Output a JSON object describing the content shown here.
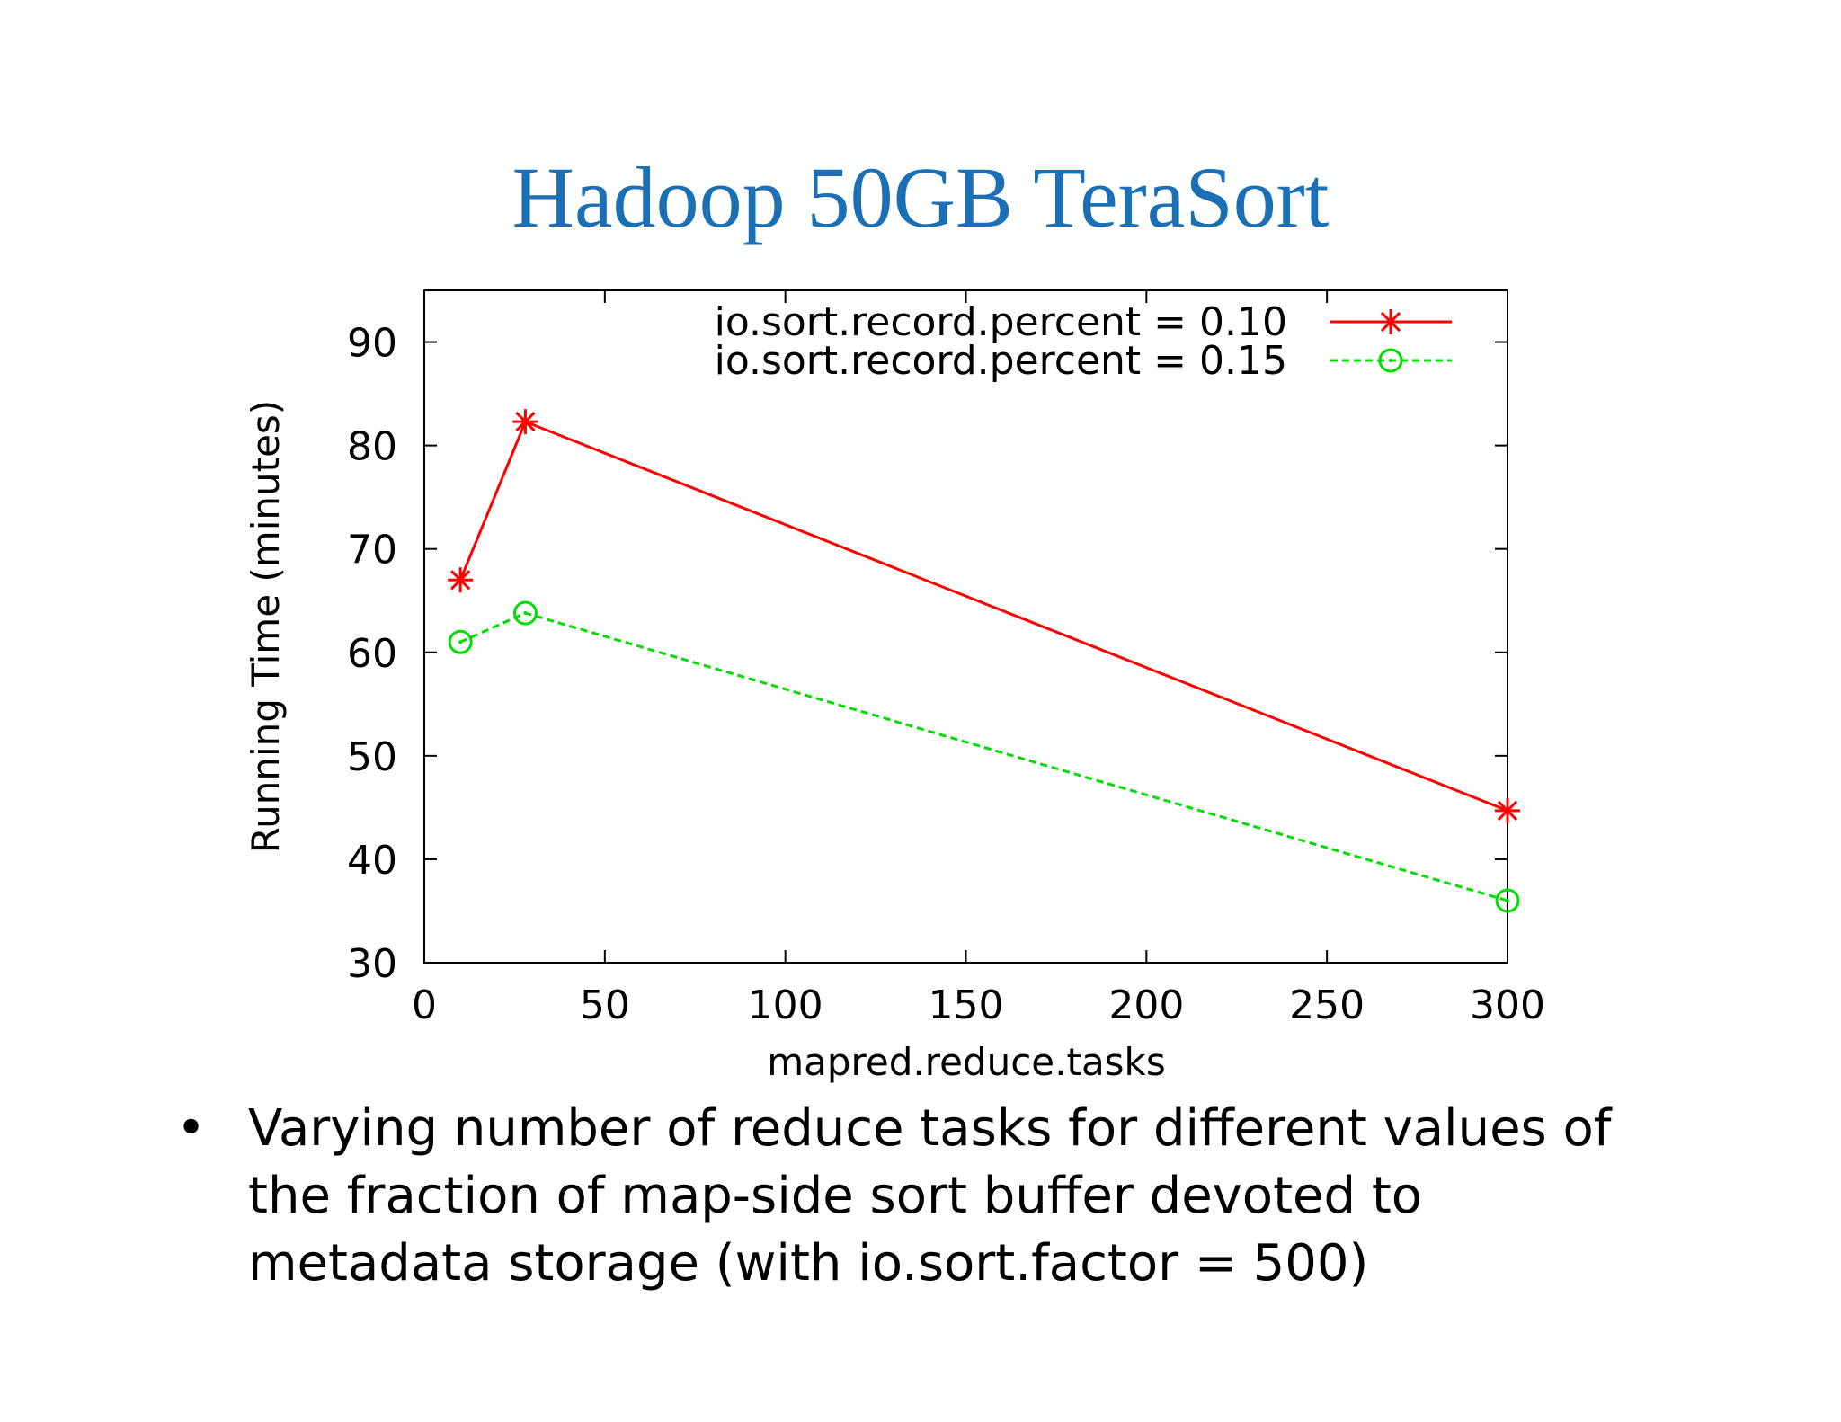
{
  "slide": {
    "title": "Hadoop 50GB TeraSort",
    "bullet_marker": "•",
    "bullet_text": "Varying number of reduce tasks for different values of the fraction of map-side sort buffer devoted to metadata storage (with io.sort.factor = 500)"
  },
  "chart_data": {
    "type": "line",
    "title": "",
    "xlabel": "mapred.reduce.tasks",
    "ylabel": "Running Time (minutes)",
    "xlim": [
      0,
      300
    ],
    "ylim": [
      30,
      95
    ],
    "xticks": [
      "0",
      "50",
      "100",
      "150",
      "200",
      "250",
      "300"
    ],
    "yticks": [
      "30",
      "40",
      "50",
      "60",
      "70",
      "80",
      "90"
    ],
    "grid": false,
    "legend_position": "top-right",
    "series": [
      {
        "name": "io.sort.record.percent = 0.10",
        "color": "#ff0000",
        "marker": "star",
        "line_style": "solid",
        "x": [
          10,
          28,
          300
        ],
        "values": [
          67,
          82.3,
          44.7
        ]
      },
      {
        "name": "io.sort.record.percent = 0.15",
        "color": "#00dd00",
        "marker": "circle",
        "line_style": "dashed",
        "x": [
          10,
          28,
          300
        ],
        "values": [
          61,
          63.8,
          36
        ]
      }
    ]
  }
}
